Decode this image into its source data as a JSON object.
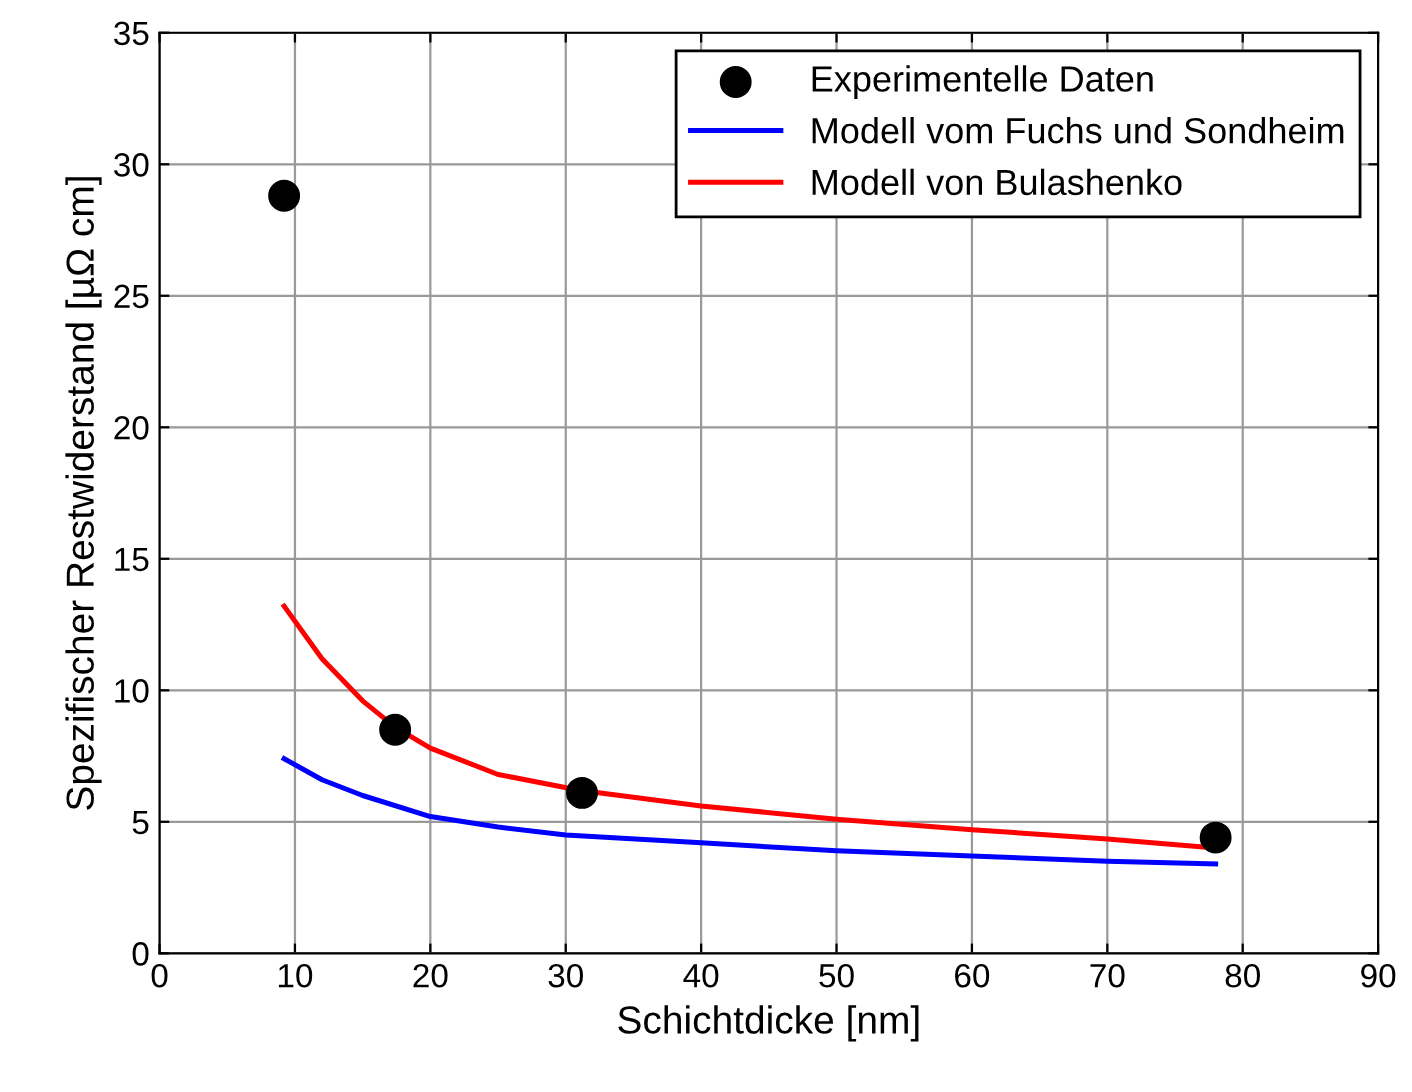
{
  "chart_data": {
    "type": "line",
    "xlabel": "Schichtdicke [nm]",
    "ylabel": "Spezifischer Restwiderstand [µΩ cm]",
    "xlim": [
      0,
      90
    ],
    "ylim": [
      0,
      35
    ],
    "xticks": [
      0,
      10,
      20,
      30,
      40,
      50,
      60,
      70,
      80,
      90
    ],
    "yticks": [
      0,
      5,
      10,
      15,
      20,
      25,
      30,
      35
    ],
    "grid": true,
    "legend": "top right",
    "series": [
      {
        "name": "Experimentelle Daten",
        "type": "scatter",
        "marker": "circle",
        "color": "#000000",
        "x": [
          9.2,
          17.4,
          31.2,
          78
        ],
        "values": [
          28.8,
          8.5,
          6.1,
          4.4
        ]
      },
      {
        "name": "Modell vom Fuchs und Sondheim",
        "color": "#0000ff",
        "x": [
          9.2,
          12,
          15,
          20,
          25,
          30,
          40,
          50,
          60,
          70,
          78
        ],
        "values": [
          7.4,
          6.6,
          6.0,
          5.2,
          4.8,
          4.5,
          4.2,
          3.9,
          3.7,
          3.5,
          3.4
        ]
      },
      {
        "name": "Modell von Bulashenko",
        "color": "#ff0000",
        "x": [
          9.2,
          12,
          15,
          17.4,
          20,
          25,
          31,
          40,
          50,
          60,
          70,
          78
        ],
        "values": [
          13.2,
          11.2,
          9.6,
          8.6,
          7.8,
          6.8,
          6.2,
          5.6,
          5.1,
          4.7,
          4.35,
          4.0
        ]
      }
    ]
  }
}
